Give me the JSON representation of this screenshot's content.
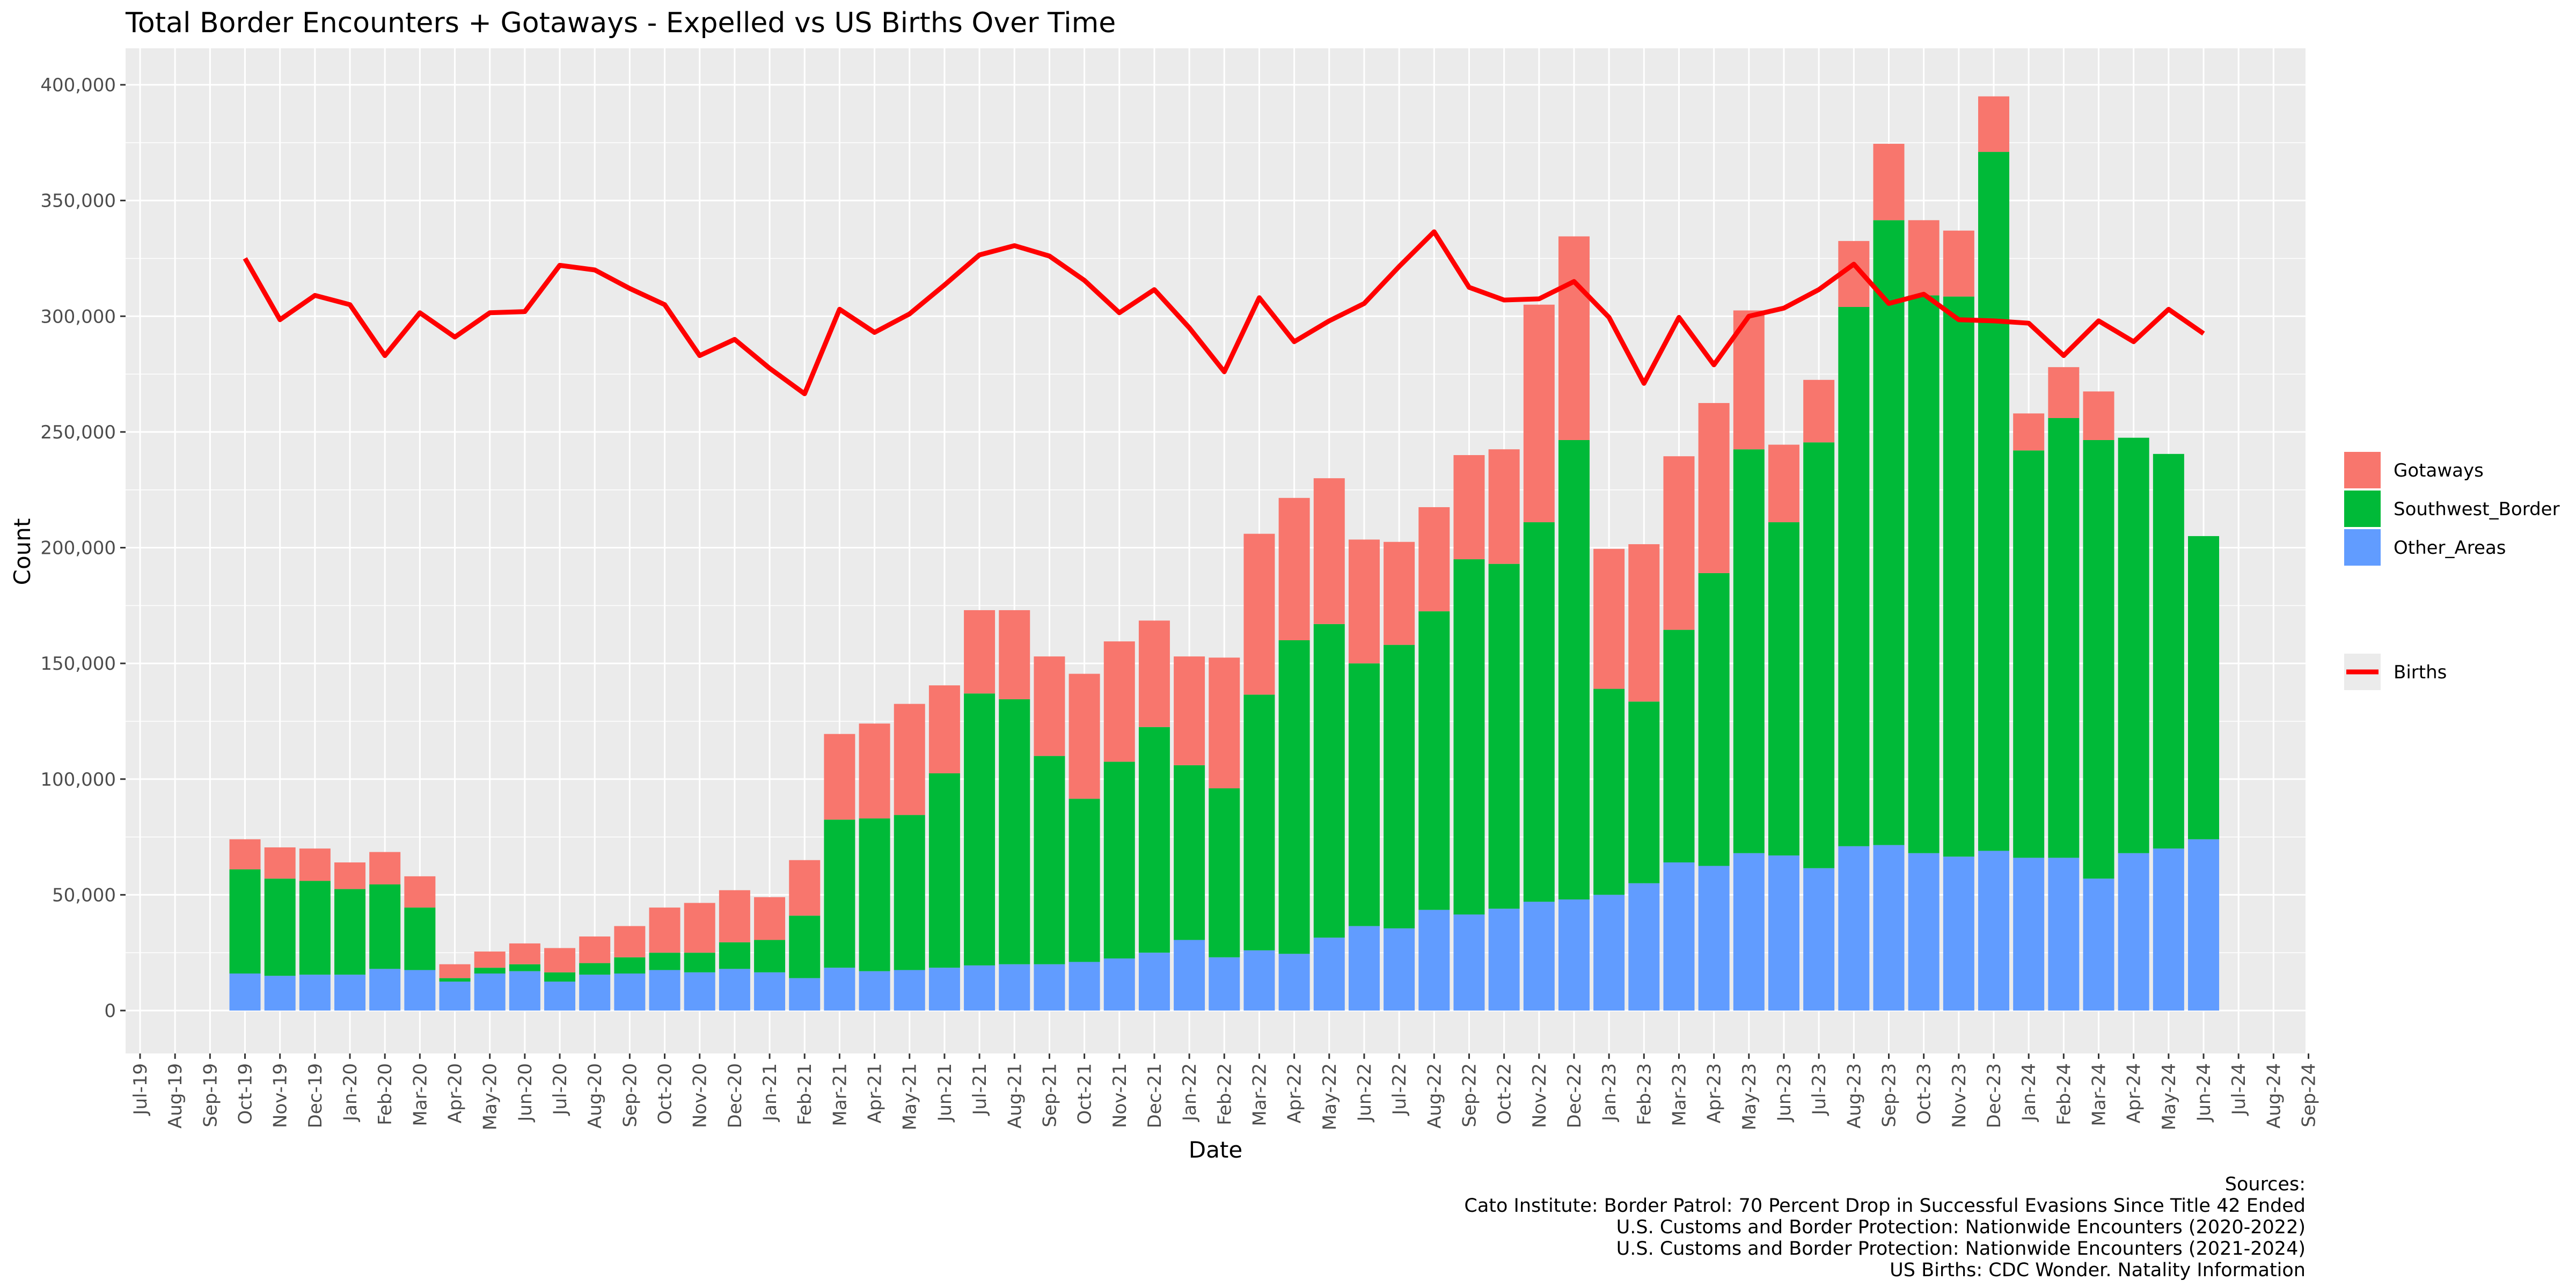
{
  "chart_data": {
    "type": "bar",
    "stacked": true,
    "title": "Total Border Encounters + Gotaways - Expelled vs US Births Over Time",
    "xlabel": "Date",
    "ylabel": "Count",
    "ylim": [
      0,
      410000
    ],
    "y_ticks": [
      0,
      50000,
      100000,
      150000,
      200000,
      250000,
      300000,
      350000,
      400000
    ],
    "y_tick_labels": [
      "0",
      "50,000",
      "100,000",
      "150,000",
      "200,000",
      "250,000",
      "300,000",
      "350,000",
      "400,000"
    ],
    "grid": true,
    "legend_position": "right",
    "x_ticks": [
      "Jul-19",
      "Aug-19",
      "Sep-19",
      "Oct-19",
      "Nov-19",
      "Dec-19",
      "Jan-20",
      "Feb-20",
      "Mar-20",
      "Apr-20",
      "May-20",
      "Jun-20",
      "Jul-20",
      "Aug-20",
      "Sep-20",
      "Oct-20",
      "Nov-20",
      "Dec-20",
      "Jan-21",
      "Feb-21",
      "Mar-21",
      "Apr-21",
      "May-21",
      "Jun-21",
      "Jul-21",
      "Aug-21",
      "Sep-21",
      "Oct-21",
      "Nov-21",
      "Dec-21",
      "Jan-22",
      "Feb-22",
      "Mar-22",
      "Apr-22",
      "May-22",
      "Jun-22",
      "Jul-22",
      "Aug-22",
      "Sep-22",
      "Oct-22",
      "Nov-22",
      "Dec-22",
      "Jan-23",
      "Feb-23",
      "Mar-23",
      "Apr-23",
      "May-23",
      "Jun-23",
      "Jul-23",
      "Aug-23",
      "Sep-23",
      "Oct-23",
      "Nov-23",
      "Dec-23",
      "Jan-24",
      "Feb-24",
      "Mar-24",
      "Apr-24",
      "May-24",
      "Jun-24",
      "Jul-24",
      "Aug-24",
      "Sep-24"
    ],
    "categories": [
      "Oct-19",
      "Nov-19",
      "Dec-19",
      "Jan-20",
      "Feb-20",
      "Mar-20",
      "Apr-20",
      "May-20",
      "Jun-20",
      "Jul-20",
      "Aug-20",
      "Sep-20",
      "Oct-20",
      "Nov-20",
      "Dec-20",
      "Jan-21",
      "Feb-21",
      "Mar-21",
      "Apr-21",
      "May-21",
      "Jun-21",
      "Jul-21",
      "Aug-21",
      "Sep-21",
      "Oct-21",
      "Nov-21",
      "Dec-21",
      "Jan-22",
      "Feb-22",
      "Mar-22",
      "Apr-22",
      "May-22",
      "Jun-22",
      "Jul-22",
      "Aug-22",
      "Sep-22",
      "Oct-22",
      "Nov-22",
      "Dec-22",
      "Jan-23",
      "Feb-23",
      "Mar-23",
      "Apr-23",
      "May-23",
      "Jun-23",
      "Jul-23",
      "Aug-23",
      "Sep-23",
      "Oct-23",
      "Nov-23",
      "Dec-23",
      "Jan-24",
      "Feb-24",
      "Mar-24",
      "Apr-24",
      "May-24",
      "Jun-24"
    ],
    "series": [
      {
        "name": "Other_Areas",
        "color": "#619CFF",
        "values": [
          16000,
          15000,
          15500,
          15500,
          18000,
          17500,
          12500,
          16000,
          17000,
          12500,
          15500,
          16000,
          17500,
          16500,
          18000,
          16500,
          14000,
          18500,
          17000,
          17500,
          18500,
          19500,
          20000,
          20000,
          21000,
          22500,
          25000,
          30500,
          23000,
          26000,
          24500,
          31500,
          36500,
          35500,
          43500,
          41500,
          44000,
          47000,
          48000,
          50000,
          55000,
          64000,
          62500,
          68000,
          67000,
          61500,
          71000,
          71500,
          68000,
          66500,
          69000,
          66000,
          66000,
          57000,
          68000,
          70000,
          74000
        ]
      },
      {
        "name": "Southwest_Border",
        "color": "#00BA38",
        "values": [
          45000,
          42000,
          40500,
          37000,
          36500,
          27000,
          1500,
          2500,
          3000,
          4000,
          5000,
          7000,
          7500,
          8500,
          11500,
          14000,
          27000,
          64000,
          66000,
          67000,
          84000,
          117500,
          114500,
          90000,
          70500,
          85000,
          97500,
          75500,
          73000,
          110500,
          135500,
          135500,
          113500,
          122500,
          129000,
          153500,
          149000,
          164000,
          198500,
          89000,
          78500,
          100500,
          126500,
          174500,
          144000,
          184000,
          233000,
          270000,
          241000,
          242000,
          302000,
          176000,
          190000,
          189500,
          179500,
          170500,
          131000
        ]
      },
      {
        "name": "Gotaways",
        "color": "#F8766D",
        "values": [
          13000,
          13500,
          14000,
          11500,
          14000,
          13500,
          6000,
          7000,
          9000,
          10500,
          11500,
          13500,
          19500,
          21500,
          22500,
          18500,
          24000,
          37000,
          41000,
          48000,
          38000,
          36000,
          38500,
          43000,
          54000,
          52000,
          46000,
          47000,
          56500,
          69500,
          61500,
          63000,
          53500,
          44500,
          45000,
          45000,
          49500,
          94000,
          88000,
          60500,
          68000,
          75000,
          73500,
          60000,
          33500,
          27000,
          28500,
          33000,
          32500,
          28500,
          24000,
          16000,
          22000,
          21000,
          0,
          0,
          0
        ]
      }
    ],
    "line": {
      "name": "Births",
      "color": "#FF0000",
      "values": [
        325000,
        298500,
        309000,
        305000,
        283000,
        301500,
        291000,
        301500,
        302000,
        322000,
        320000,
        312000,
        305000,
        283000,
        290000,
        277500,
        266500,
        303000,
        293000,
        301000,
        313500,
        326500,
        330500,
        326000,
        315500,
        301500,
        311500,
        295000,
        276000,
        308000,
        289000,
        298000,
        305500,
        321500,
        336500,
        312500,
        307000,
        307500,
        315000,
        299500,
        271000,
        299500,
        279000,
        300000,
        303500,
        311500,
        322500,
        305500,
        309500,
        298500,
        298000,
        297000,
        283000,
        298000,
        289000,
        303000,
        292500
      ]
    },
    "legend": {
      "bar_entries": [
        "Gotaways",
        "Southwest_Border",
        "Other_Areas"
      ],
      "line_entries": [
        "Births"
      ]
    },
    "caption": [
      "Sources:",
      "Cato Institute: Border Patrol: 70 Percent Drop in Successful Evasions Since Title 42 Ended",
      "U.S. Customs and Border Protection: Nationwide Encounters (2020-2022)",
      "U.S. Customs and Border Protection: Nationwide Encounters (2021-2024)",
      "US Births: CDC Wonder. Natality Information"
    ]
  }
}
